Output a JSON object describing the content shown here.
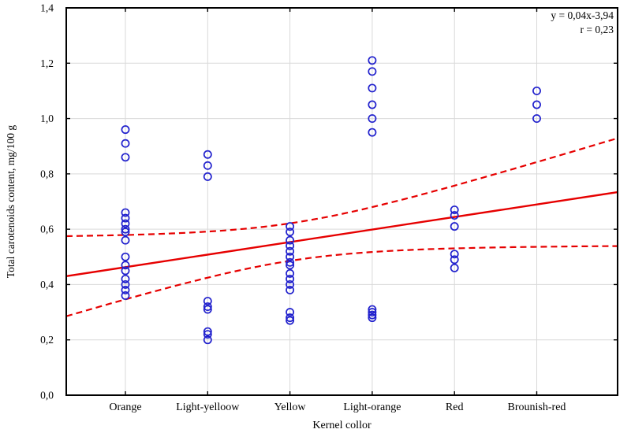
{
  "chart_data": {
    "type": "scatter",
    "xlabel": "Kernel collor",
    "ylabel": "Total carotenoids content, mg/100 g",
    "categories": [
      "Orange",
      "Light-yelloow",
      "Yellow",
      "Light-orange",
      "Red",
      "Brounish-red"
    ],
    "y_ticks": [
      "0,0",
      "0,2",
      "0,4",
      "0,6",
      "0,8",
      "1,0",
      "1,2",
      "1,4"
    ],
    "y_tick_values": [
      0.0,
      0.2,
      0.4,
      0.6,
      0.8,
      1.0,
      1.2,
      1.4
    ],
    "ylim": [
      0.0,
      1.4
    ],
    "grid": true,
    "legend": "none",
    "annotation": {
      "equation": "y = 0,04x-3,94",
      "r": "r = 0,23"
    },
    "series": [
      {
        "name": "Orange",
        "category_index": 1,
        "values": [
          0.96,
          0.91,
          0.86,
          0.66,
          0.64,
          0.62,
          0.6,
          0.59,
          0.56,
          0.5,
          0.47,
          0.45,
          0.42,
          0.4,
          0.38,
          0.36
        ]
      },
      {
        "name": "Light-yelloow",
        "category_index": 2,
        "values": [
          0.87,
          0.83,
          0.79,
          0.34,
          0.32,
          0.31,
          0.23,
          0.22,
          0.2
        ]
      },
      {
        "name": "Yellow",
        "category_index": 3,
        "values": [
          0.61,
          0.59,
          0.56,
          0.54,
          0.52,
          0.5,
          0.48,
          0.47,
          0.44,
          0.42,
          0.4,
          0.38,
          0.3,
          0.28,
          0.27
        ]
      },
      {
        "name": "Light-orange",
        "category_index": 4,
        "values": [
          1.21,
          1.17,
          1.11,
          1.05,
          1.0,
          0.95,
          0.31,
          0.3,
          0.29,
          0.28
        ]
      },
      {
        "name": "Red",
        "category_index": 5,
        "values": [
          0.67,
          0.65,
          0.61,
          0.51,
          0.49,
          0.46
        ]
      },
      {
        "name": "Brounish-red",
        "category_index": 6,
        "values": [
          1.1,
          1.05,
          1.0
        ]
      }
    ],
    "regression": {
      "value_at_index0": 0.4174,
      "slope_per_index": 0.04534,
      "index_range": [
        0.281,
        6.983
      ]
    },
    "confidence_band": {
      "a": 0.0046,
      "b": 0.00215,
      "center_index": 3.04,
      "style": "dashed"
    },
    "colors": {
      "marker": "#2121cd",
      "fit_line": "#e60000",
      "grid": "#d9d9d9",
      "frame": "#000000",
      "background": "#ffffff"
    }
  }
}
